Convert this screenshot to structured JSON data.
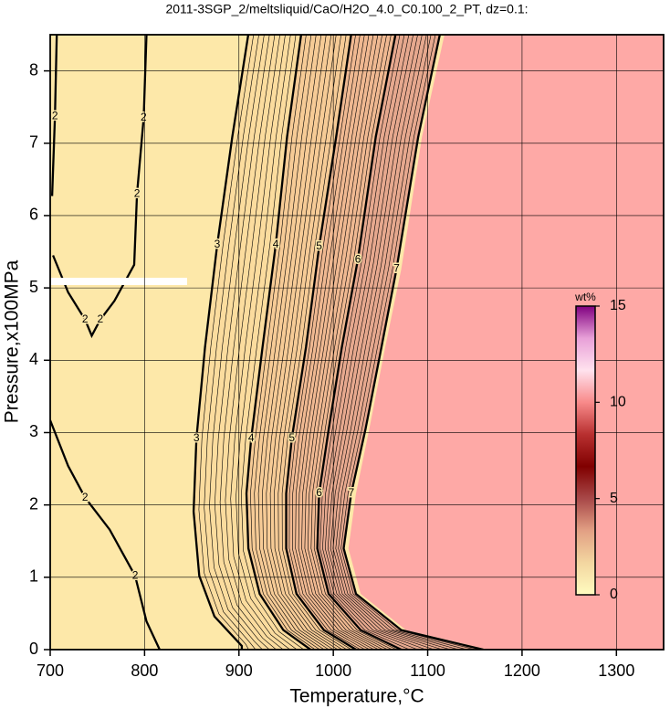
{
  "chart_data": {
    "type": "contour",
    "title": "2011-3SGP_2/meltsliquid/CaO/H2O_4.0_C0.100_2_PT, dz=0.1:",
    "x_label": "Temperature,°C",
    "y_label": "Pressure,x100MPa",
    "xlim": [
      700,
      1350
    ],
    "ylim": [
      0,
      8.5
    ],
    "xticks": [
      700,
      800,
      900,
      1000,
      1100,
      1200,
      1300
    ],
    "yticks": [
      0,
      1,
      2,
      3,
      4,
      5,
      6,
      7,
      8
    ],
    "grid": true,
    "base_color": "#fde8a9",
    "band_colors": [
      "#fbdc9e",
      "#f6cb96",
      "#efb891",
      "#e6a88e"
    ],
    "contours": [
      {
        "level": 2,
        "x": [
          802,
          799,
          792,
          789,
          768,
          753,
          744,
          737,
          719,
          703,
          null,
          707,
          705,
          702,
          null,
          700,
          719,
          737,
          763,
          790,
          802,
          816
        ],
        "y": [
          8.51,
          7.35,
          6.3,
          5.32,
          4.82,
          4.56,
          4.34,
          4.56,
          4.94,
          5.45,
          null,
          8.51,
          7.37,
          6.27,
          null,
          3.17,
          2.54,
          2.1,
          1.66,
          1.02,
          0.39,
          0
        ]
      },
      {
        "level": 3,
        "x": [
          910,
          893,
          877,
          864,
          855,
          852,
          858,
          874,
          903,
          903
        ],
        "y": [
          8.51,
          7.09,
          5.6,
          4.18,
          2.92,
          1.91,
          1.02,
          0.46,
          0.05,
          0
        ]
      },
      {
        "level": 4,
        "x": [
          966,
          951,
          939,
          925,
          913,
          908,
          910,
          922,
          947,
          976
        ],
        "y": [
          8.51,
          7.09,
          5.6,
          4.18,
          2.92,
          2.16,
          1.4,
          0.77,
          0.27,
          0
        ]
      },
      {
        "level": 5,
        "x": [
          1019,
          1003,
          985,
          971,
          956,
          950,
          950,
          961,
          990,
          1024
        ],
        "y": [
          8.51,
          7.09,
          5.57,
          4.18,
          2.92,
          2.16,
          1.4,
          0.77,
          0.27,
          0
        ]
      },
      {
        "level": 6,
        "x": [
          1066,
          1045,
          1026,
          1009,
          995,
          985,
          983,
          995,
          1029,
          1072
        ],
        "y": [
          8.51,
          7.09,
          5.39,
          4.18,
          3.04,
          2.16,
          1.4,
          0.77,
          0.27,
          0
        ]
      },
      {
        "level": 7,
        "x": [
          1113,
          1090,
          1067,
          1051,
          1034,
          1019,
          1011,
          1024,
          1072,
          1159
        ],
        "y": [
          8.51,
          7.09,
          5.26,
          4.18,
          3.04,
          2.16,
          1.4,
          0.77,
          0.27,
          0
        ]
      }
    ],
    "region": {
      "color": "#fea9a6",
      "x": [
        1118,
        1094,
        1072,
        1055,
        1038,
        1024,
        1016,
        1029,
        1077,
        1164
      ],
      "y": [
        8.51,
        7.09,
        5.26,
        4.18,
        3.04,
        2.16,
        1.4,
        0.77,
        0.27,
        0
      ]
    },
    "colorbar": {
      "label": "wt%",
      "lim": [
        0,
        15
      ],
      "ticks": [
        0,
        5,
        10,
        15
      ],
      "colors": [
        "#fffcc0",
        "#f3d6a0",
        "#e2a084",
        "#a84848",
        "#800000",
        "#b83030",
        "#f88a8a",
        "#ffe2ee",
        "#e8a0d8",
        "#800080"
      ]
    }
  }
}
